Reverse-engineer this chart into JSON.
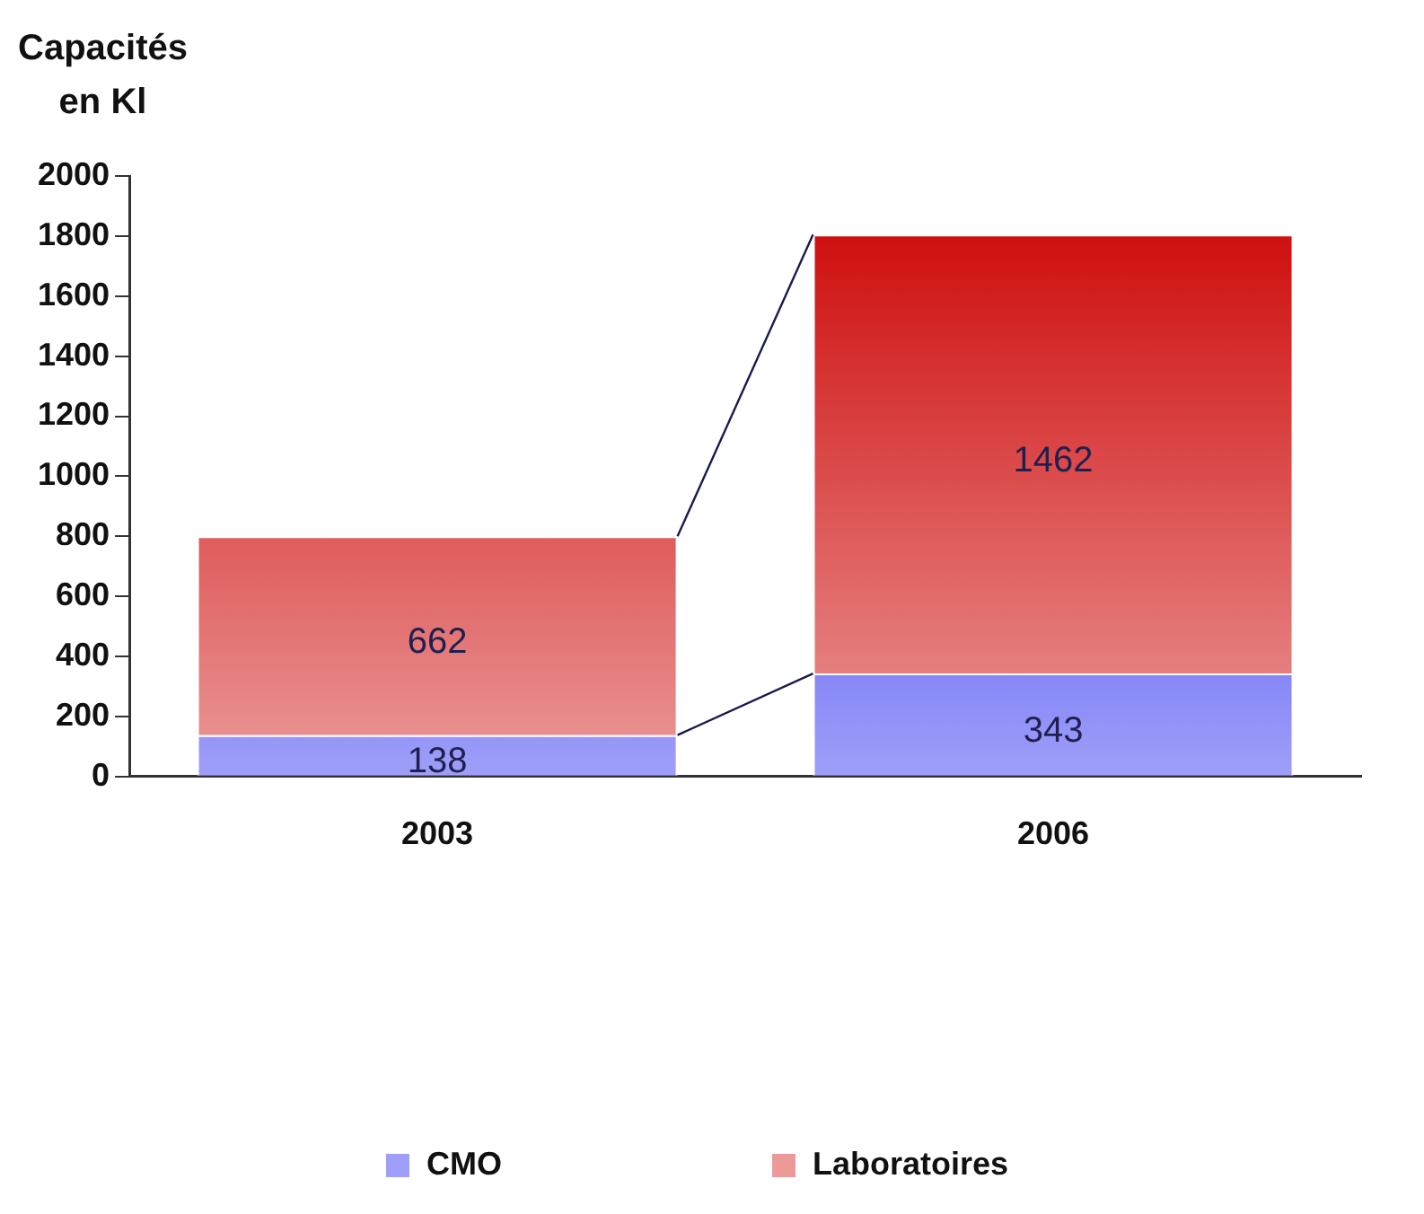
{
  "chart_data": {
    "type": "bar",
    "ylabel": "Capacités\nen Kl",
    "categories": [
      "2003",
      "2006"
    ],
    "stacked": true,
    "data_labels": true,
    "legend": "bottom",
    "grid": false,
    "series": [
      {
        "name": "CMO",
        "color": "#1010f0",
        "values": [
          138,
          343
        ]
      },
      {
        "name": "Laboratoires",
        "color": "#cc0000",
        "values": [
          662,
          1462
        ]
      }
    ],
    "ylim": [
      0,
      2000
    ],
    "yticks": [
      0,
      200,
      400,
      600,
      800,
      1000,
      1200,
      1400,
      1600,
      1800,
      2000
    ]
  }
}
